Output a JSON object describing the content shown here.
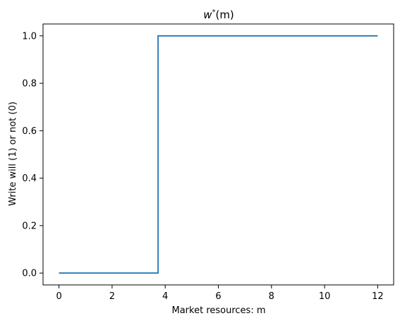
{
  "chart_data": {
    "type": "line",
    "title": "w*(m)",
    "title_parts": {
      "base": "w",
      "sup": "*",
      "rest": "(m)"
    },
    "xlabel": "Market resources: m",
    "ylabel": "Write will (1) or not (0)",
    "xlim": [
      -0.6,
      12.6
    ],
    "ylim": [
      -0.05,
      1.05
    ],
    "xticks": [
      0,
      2,
      4,
      6,
      8,
      10,
      12
    ],
    "xtick_labels": [
      "0",
      "2",
      "4",
      "6",
      "8",
      "10",
      "12"
    ],
    "yticks": [
      0.0,
      0.2,
      0.4,
      0.6,
      0.8,
      1.0
    ],
    "ytick_labels": [
      "0.0",
      "0.2",
      "0.4",
      "0.6",
      "0.8",
      "1.0"
    ],
    "grid": false,
    "series": [
      {
        "color": "#1f77b4",
        "x": [
          0,
          3.73,
          3.73,
          12
        ],
        "y": [
          0,
          0,
          1,
          1
        ]
      }
    ]
  }
}
